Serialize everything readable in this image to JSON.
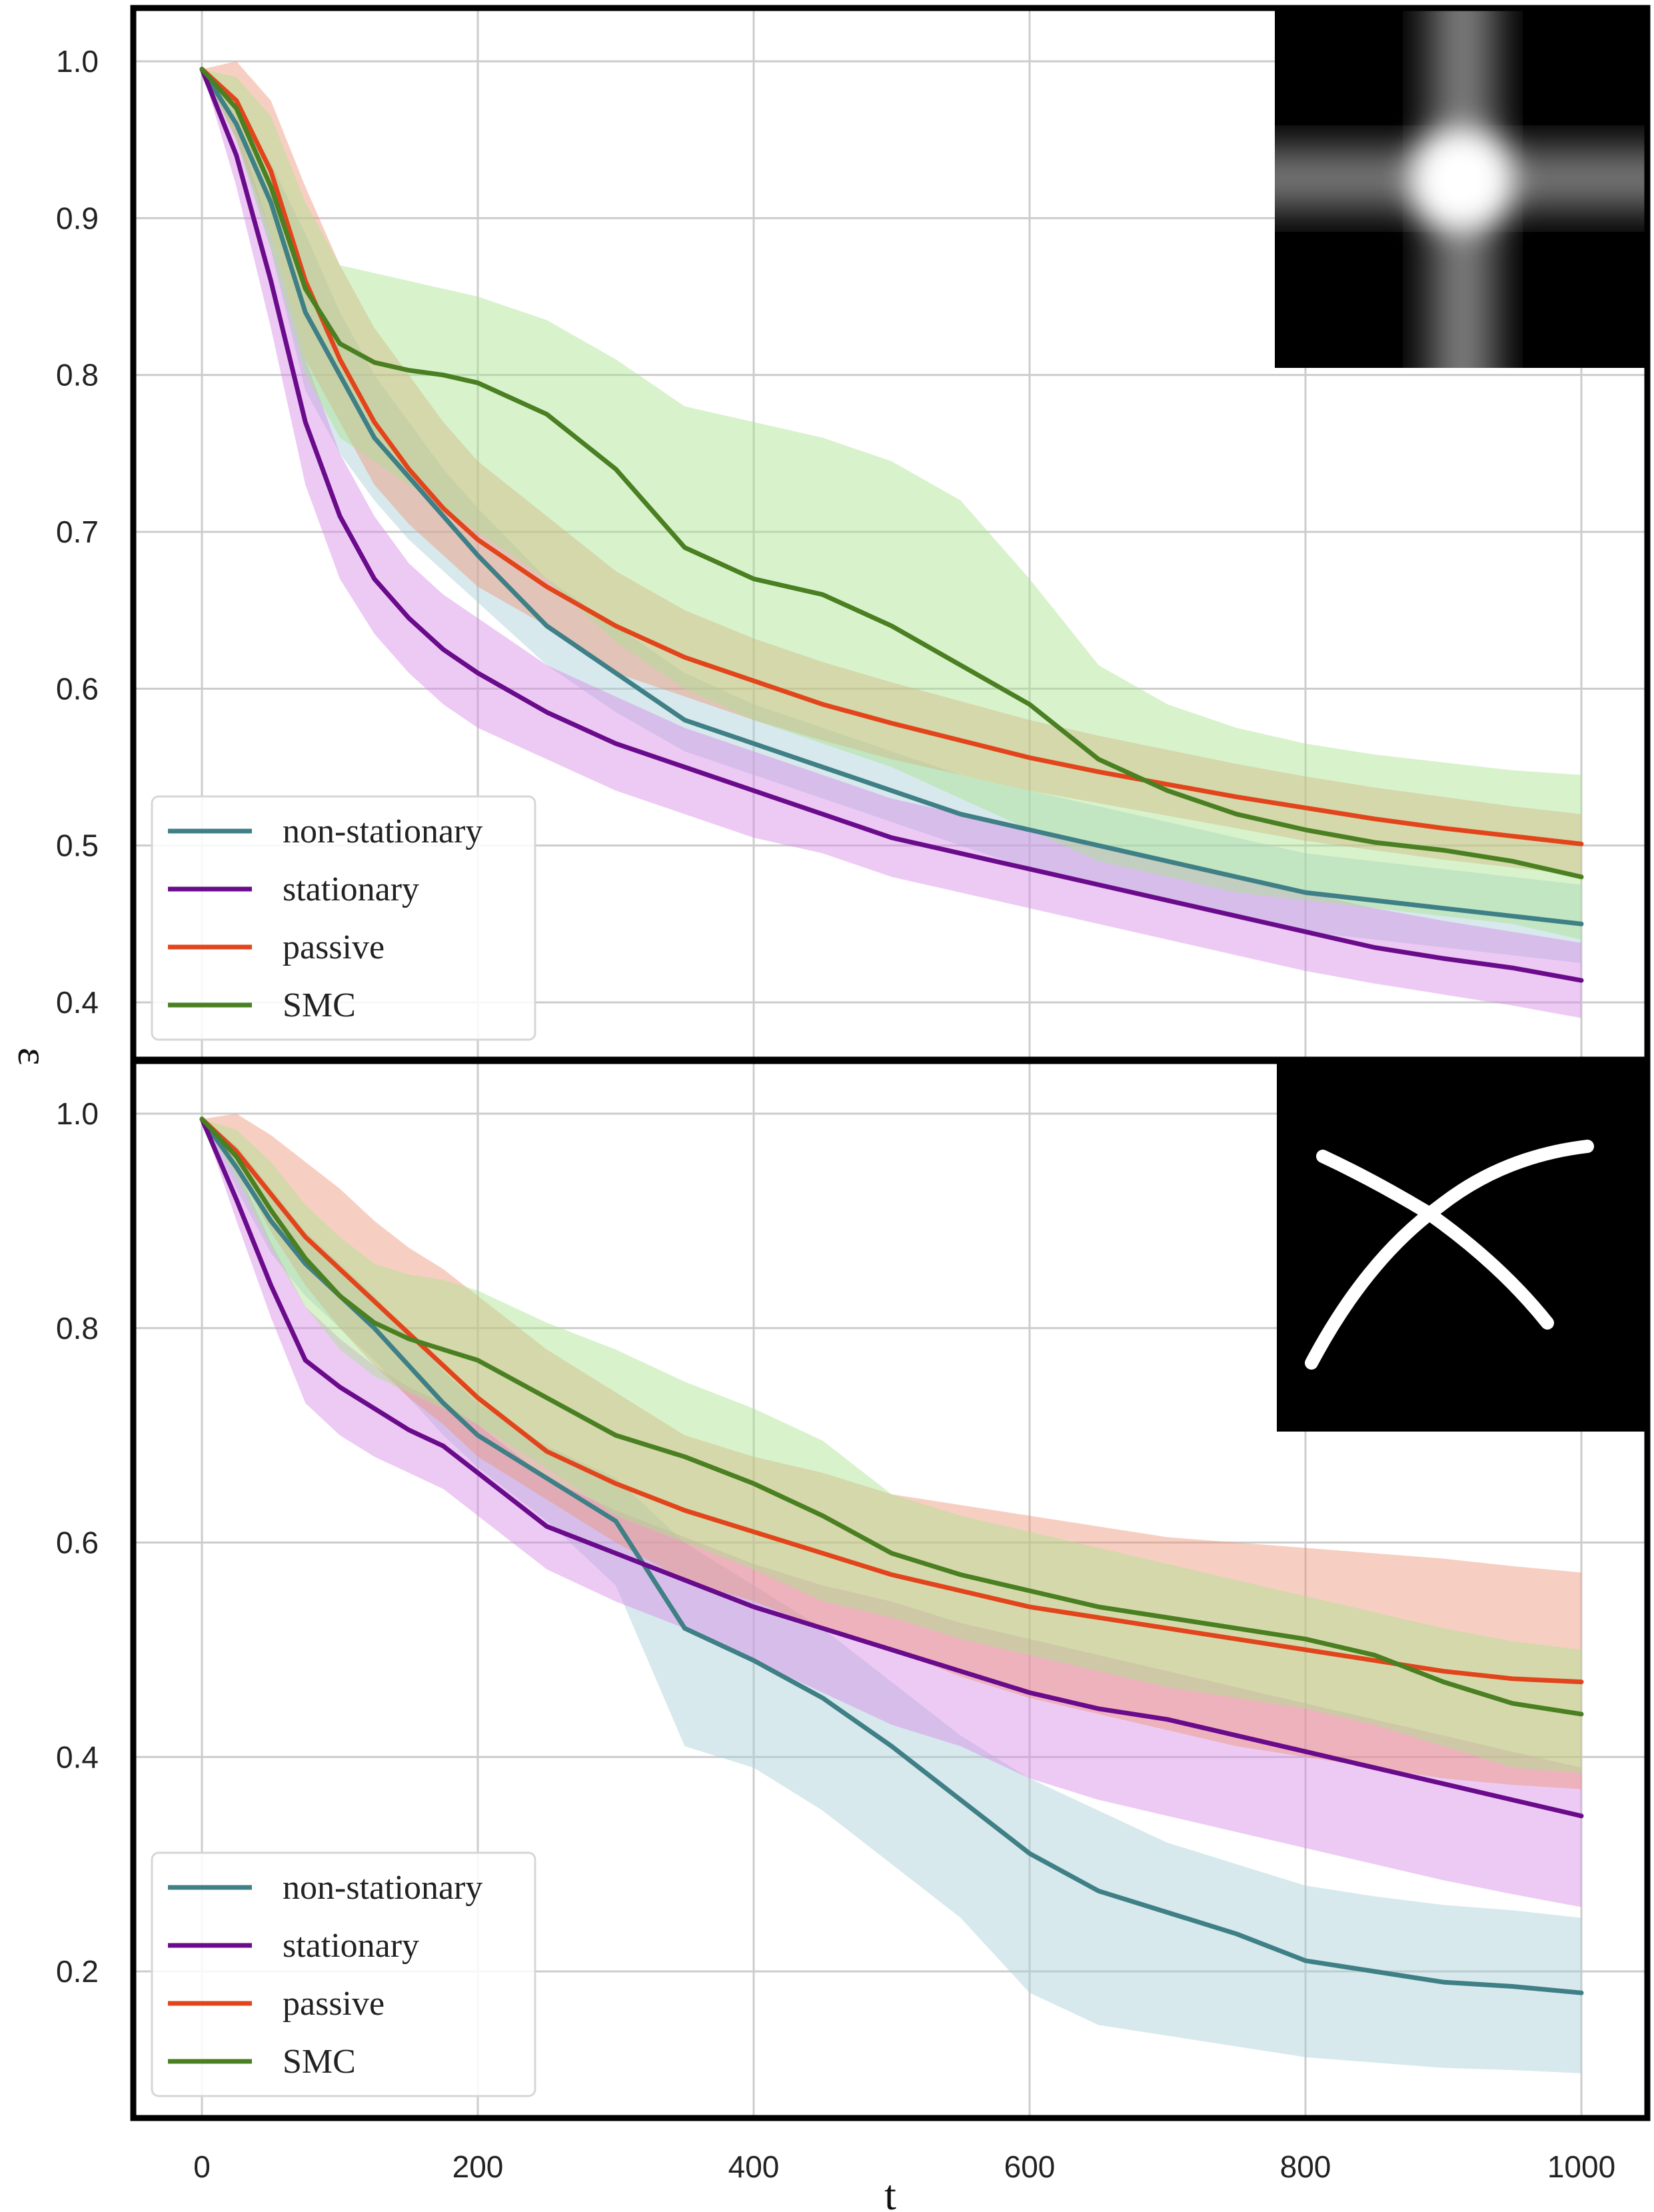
{
  "colors": {
    "non-stationary": "#3f7f86",
    "stationary": "#6a0b8c",
    "passive": "#e2451c",
    "SMC": "#4a7f22",
    "band_non-stationary": "#a6cfd8",
    "band_stationary": "#d88ae6",
    "band_passive": "#ee9478",
    "band_SMC": "#a9e28d"
  },
  "chart_data": [
    {
      "type": "line",
      "panel": "top",
      "inset": "blurred-plus-image",
      "xlabel": "t",
      "ylabel": "ε",
      "xlim": [
        -50,
        1050
      ],
      "ylim": [
        0.365,
        1.035
      ],
      "xticks": [
        "0",
        "200",
        "400",
        "600",
        "800",
        "1000"
      ],
      "yticks": [
        "0.4",
        "0.5",
        "0.6",
        "0.7",
        "0.8",
        "0.9",
        "1.0"
      ],
      "yticks_values": [
        0.4,
        0.5,
        0.6,
        0.7,
        0.8,
        0.9,
        1.0
      ],
      "legend": [
        "non-stationary",
        "stationary",
        "passive",
        "SMC"
      ],
      "legend_position": "lower-left",
      "x": [
        0,
        25,
        50,
        75,
        100,
        125,
        150,
        175,
        200,
        250,
        300,
        350,
        400,
        450,
        500,
        550,
        600,
        650,
        700,
        750,
        800,
        850,
        900,
        950,
        1000
      ],
      "series": [
        {
          "name": "non-stationary",
          "values": [
            0.995,
            0.96,
            0.91,
            0.84,
            0.8,
            0.76,
            0.735,
            0.71,
            0.685,
            0.64,
            0.61,
            0.58,
            0.565,
            0.55,
            0.535,
            0.52,
            0.51,
            0.5,
            0.49,
            0.48,
            0.47,
            0.465,
            0.46,
            0.455,
            0.45
          ],
          "upper": [
            0.995,
            0.97,
            0.935,
            0.89,
            0.84,
            0.8,
            0.77,
            0.74,
            0.715,
            0.67,
            0.64,
            0.61,
            0.59,
            0.575,
            0.56,
            0.545,
            0.535,
            0.525,
            0.515,
            0.505,
            0.495,
            0.49,
            0.485,
            0.48,
            0.475
          ],
          "lower": [
            0.995,
            0.95,
            0.88,
            0.79,
            0.75,
            0.72,
            0.695,
            0.675,
            0.655,
            0.615,
            0.585,
            0.56,
            0.545,
            0.53,
            0.515,
            0.5,
            0.485,
            0.475,
            0.465,
            0.455,
            0.445,
            0.44,
            0.435,
            0.43,
            0.425
          ]
        },
        {
          "name": "stationary",
          "values": [
            0.995,
            0.94,
            0.86,
            0.77,
            0.71,
            0.67,
            0.645,
            0.625,
            0.61,
            0.585,
            0.565,
            0.55,
            0.535,
            0.52,
            0.505,
            0.495,
            0.485,
            0.475,
            0.465,
            0.455,
            0.445,
            0.435,
            0.428,
            0.422,
            0.414
          ],
          "upper": [
            0.995,
            0.96,
            0.89,
            0.81,
            0.75,
            0.71,
            0.68,
            0.66,
            0.645,
            0.615,
            0.595,
            0.575,
            0.56,
            0.545,
            0.53,
            0.52,
            0.51,
            0.5,
            0.49,
            0.48,
            0.47,
            0.46,
            0.452,
            0.445,
            0.438
          ],
          "lower": [
            0.995,
            0.92,
            0.83,
            0.73,
            0.67,
            0.635,
            0.61,
            0.59,
            0.575,
            0.555,
            0.535,
            0.52,
            0.505,
            0.495,
            0.48,
            0.47,
            0.46,
            0.45,
            0.44,
            0.43,
            0.42,
            0.412,
            0.405,
            0.398,
            0.39
          ]
        },
        {
          "name": "passive",
          "values": [
            0.995,
            0.975,
            0.93,
            0.86,
            0.81,
            0.77,
            0.74,
            0.715,
            0.695,
            0.665,
            0.64,
            0.62,
            0.605,
            0.59,
            0.578,
            0.567,
            0.556,
            0.547,
            0.539,
            0.531,
            0.524,
            0.517,
            0.511,
            0.506,
            0.501
          ],
          "upper": [
            0.995,
            1.0,
            0.975,
            0.92,
            0.87,
            0.83,
            0.8,
            0.77,
            0.745,
            0.71,
            0.675,
            0.65,
            0.632,
            0.617,
            0.604,
            0.592,
            0.58,
            0.57,
            0.561,
            0.552,
            0.544,
            0.537,
            0.531,
            0.525,
            0.52
          ],
          "lower": [
            0.995,
            0.95,
            0.89,
            0.81,
            0.77,
            0.73,
            0.705,
            0.685,
            0.665,
            0.64,
            0.61,
            0.595,
            0.58,
            0.567,
            0.555,
            0.545,
            0.535,
            0.527,
            0.519,
            0.511,
            0.503,
            0.497,
            0.491,
            0.486,
            0.481
          ]
        },
        {
          "name": "SMC",
          "values": [
            0.995,
            0.97,
            0.92,
            0.855,
            0.82,
            0.808,
            0.803,
            0.8,
            0.795,
            0.775,
            0.74,
            0.69,
            0.67,
            0.66,
            0.64,
            0.615,
            0.59,
            0.555,
            0.535,
            0.52,
            0.51,
            0.502,
            0.497,
            0.49,
            0.48
          ],
          "upper": [
            0.995,
            0.99,
            0.965,
            0.91,
            0.87,
            0.865,
            0.86,
            0.855,
            0.85,
            0.835,
            0.81,
            0.78,
            0.77,
            0.76,
            0.745,
            0.72,
            0.67,
            0.615,
            0.59,
            0.575,
            0.565,
            0.558,
            0.553,
            0.548,
            0.545
          ],
          "lower": [
            0.995,
            0.95,
            0.88,
            0.8,
            0.76,
            0.745,
            0.73,
            0.715,
            0.7,
            0.67,
            0.63,
            0.6,
            0.58,
            0.565,
            0.55,
            0.53,
            0.51,
            0.49,
            0.48,
            0.47,
            0.465,
            0.46,
            0.455,
            0.45,
            0.44
          ]
        }
      ]
    },
    {
      "type": "line",
      "panel": "bottom",
      "inset": "handwritten-x-image",
      "xlabel": "t",
      "ylabel": "ε",
      "xlim": [
        -50,
        1050
      ],
      "ylim": [
        0.07,
        1.035
      ],
      "xticks": [
        "0",
        "200",
        "400",
        "600",
        "800",
        "1000"
      ],
      "yticks": [
        "0.2",
        "0.4",
        "0.6",
        "0.8",
        "1.0"
      ],
      "yticks_values": [
        0.2,
        0.4,
        0.6,
        0.8,
        1.0
      ],
      "legend": [
        "non-stationary",
        "stationary",
        "passive",
        "SMC"
      ],
      "legend_position": "lower-left",
      "x": [
        0,
        25,
        50,
        75,
        100,
        125,
        150,
        175,
        200,
        250,
        300,
        350,
        400,
        450,
        500,
        550,
        600,
        650,
        700,
        750,
        800,
        850,
        900,
        950,
        1000
      ],
      "series": [
        {
          "name": "non-stationary",
          "values": [
            0.995,
            0.95,
            0.9,
            0.86,
            0.83,
            0.8,
            0.765,
            0.73,
            0.7,
            0.66,
            0.62,
            0.52,
            0.49,
            0.455,
            0.41,
            0.36,
            0.31,
            0.275,
            0.255,
            0.235,
            0.21,
            0.2,
            0.19,
            0.186,
            0.18
          ],
          "upper": [
            0.995,
            0.97,
            0.93,
            0.89,
            0.86,
            0.83,
            0.795,
            0.76,
            0.73,
            0.69,
            0.66,
            0.6,
            0.56,
            0.52,
            0.47,
            0.42,
            0.38,
            0.35,
            0.32,
            0.3,
            0.28,
            0.27,
            0.262,
            0.257,
            0.25
          ],
          "lower": [
            0.995,
            0.93,
            0.87,
            0.83,
            0.8,
            0.77,
            0.735,
            0.7,
            0.67,
            0.62,
            0.56,
            0.41,
            0.39,
            0.35,
            0.3,
            0.25,
            0.18,
            0.15,
            0.14,
            0.13,
            0.12,
            0.115,
            0.11,
            0.108,
            0.105
          ]
        },
        {
          "name": "stationary",
          "values": [
            0.995,
            0.92,
            0.84,
            0.77,
            0.745,
            0.725,
            0.705,
            0.69,
            0.665,
            0.615,
            0.59,
            0.565,
            0.54,
            0.52,
            0.5,
            0.48,
            0.46,
            0.445,
            0.435,
            0.42,
            0.405,
            0.39,
            0.375,
            0.36,
            0.345
          ],
          "upper": [
            0.995,
            0.95,
            0.88,
            0.82,
            0.79,
            0.765,
            0.745,
            0.73,
            0.71,
            0.66,
            0.63,
            0.605,
            0.58,
            0.56,
            0.545,
            0.525,
            0.51,
            0.495,
            0.48,
            0.465,
            0.45,
            0.435,
            0.42,
            0.405,
            0.39
          ],
          "lower": [
            0.995,
            0.9,
            0.81,
            0.73,
            0.7,
            0.68,
            0.665,
            0.65,
            0.625,
            0.575,
            0.545,
            0.52,
            0.49,
            0.46,
            0.43,
            0.41,
            0.38,
            0.36,
            0.345,
            0.33,
            0.315,
            0.3,
            0.285,
            0.272,
            0.26
          ]
        },
        {
          "name": "passive",
          "values": [
            0.995,
            0.965,
            0.925,
            0.885,
            0.855,
            0.825,
            0.795,
            0.765,
            0.735,
            0.685,
            0.655,
            0.63,
            0.61,
            0.59,
            0.57,
            0.555,
            0.54,
            0.53,
            0.52,
            0.51,
            0.5,
            0.49,
            0.48,
            0.473,
            0.47
          ],
          "upper": [
            0.995,
            1.0,
            0.98,
            0.955,
            0.93,
            0.9,
            0.875,
            0.855,
            0.83,
            0.78,
            0.74,
            0.7,
            0.68,
            0.665,
            0.645,
            0.635,
            0.625,
            0.615,
            0.605,
            0.6,
            0.595,
            0.59,
            0.585,
            0.578,
            0.572
          ],
          "lower": [
            0.995,
            0.95,
            0.89,
            0.84,
            0.8,
            0.765,
            0.735,
            0.71,
            0.68,
            0.64,
            0.6,
            0.565,
            0.545,
            0.52,
            0.5,
            0.475,
            0.455,
            0.44,
            0.425,
            0.41,
            0.4,
            0.39,
            0.38,
            0.374,
            0.37
          ]
        },
        {
          "name": "SMC",
          "values": [
            0.995,
            0.96,
            0.91,
            0.865,
            0.83,
            0.805,
            0.79,
            0.78,
            0.77,
            0.735,
            0.7,
            0.68,
            0.655,
            0.625,
            0.59,
            0.57,
            0.555,
            0.54,
            0.53,
            0.52,
            0.51,
            0.495,
            0.47,
            0.45,
            0.44
          ],
          "upper": [
            0.995,
            0.985,
            0.955,
            0.915,
            0.885,
            0.86,
            0.85,
            0.845,
            0.835,
            0.805,
            0.78,
            0.75,
            0.725,
            0.695,
            0.645,
            0.625,
            0.61,
            0.595,
            0.58,
            0.565,
            0.55,
            0.535,
            0.52,
            0.508,
            0.5
          ],
          "lower": [
            0.995,
            0.94,
            0.875,
            0.82,
            0.78,
            0.755,
            0.74,
            0.725,
            0.71,
            0.67,
            0.625,
            0.6,
            0.575,
            0.545,
            0.53,
            0.51,
            0.495,
            0.48,
            0.465,
            0.455,
            0.445,
            0.43,
            0.41,
            0.39,
            0.385
          ]
        }
      ]
    }
  ]
}
